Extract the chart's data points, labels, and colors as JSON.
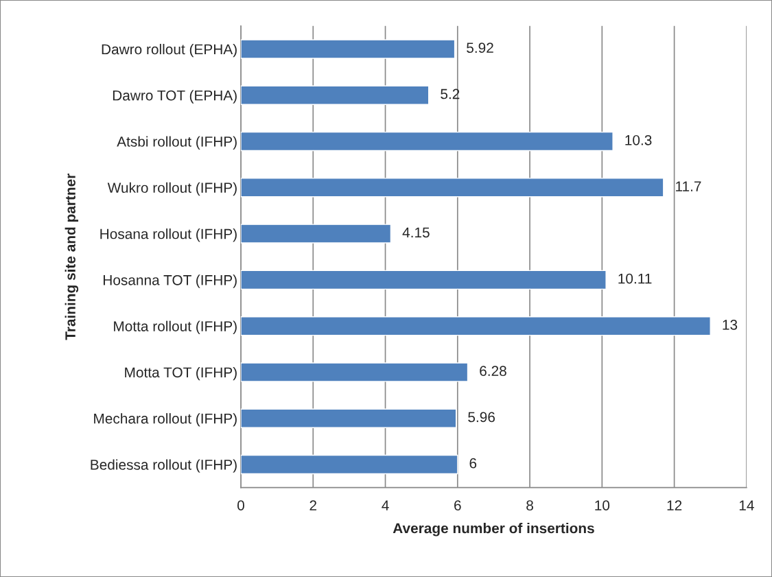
{
  "chart_data": {
    "type": "bar",
    "orientation": "horizontal",
    "xlabel": "Average number of insertions",
    "ylabel": "Training site and partner",
    "categories": [
      "Dawro rollout (EPHA)",
      "Dawro TOT (EPHA)",
      "Atsbi rollout (IFHP)",
      "Wukro rollout (IFHP)",
      "Hosana rollout (IFHP)",
      "Hosanna TOT (IFHP)",
      "Motta rollout (IFHP)",
      "Motta TOT (IFHP)",
      "Mechara rollout (IFHP)",
      "Bediessa rollout (IFHP)"
    ],
    "values": [
      5.92,
      5.2,
      10.3,
      11.7,
      4.15,
      10.11,
      13,
      6.28,
      5.96,
      6
    ],
    "color": "#4f81bd",
    "xlim": [
      0,
      14
    ],
    "xticks": [
      0,
      2,
      4,
      6,
      8,
      10,
      12,
      14
    ],
    "grid": "x",
    "data_labels": true
  }
}
